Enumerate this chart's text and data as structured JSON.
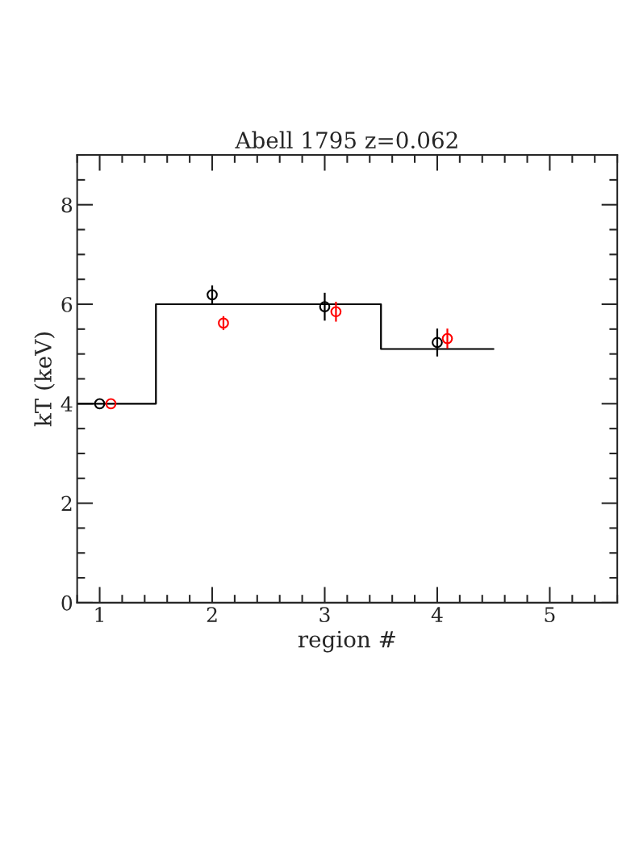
{
  "chart_data": {
    "type": "scatter",
    "title": "Abell 1795 z=0.062",
    "xlabel": "region #",
    "ylabel": "kT (keV)",
    "xlim": [
      0.8,
      5.6
    ],
    "xticks": [
      1,
      2,
      3,
      4,
      5
    ],
    "ylim": [
      0,
      9
    ],
    "yticks": [
      0,
      2,
      4,
      6,
      8
    ],
    "grid": false,
    "marker": "circle",
    "series": [
      {
        "type": "line",
        "color": "#000000",
        "x": [
          0.8,
          1.5,
          1.5,
          3.5,
          3.5,
          4.5
        ],
        "values": [
          4.0,
          4.0,
          6.0,
          6.0,
          5.1,
          5.1
        ],
        "line_style": "solid",
        "marker": "none"
      },
      {
        "color": "#000000",
        "x": [
          1,
          2,
          3,
          4
        ],
        "values": [
          4.0,
          6.19,
          5.95,
          5.23
        ],
        "errors": [
          null,
          0.19,
          0.28,
          0.28
        ]
      },
      {
        "color": "#ff0000",
        "x": [
          1.1,
          2.1,
          3.1,
          4.09
        ],
        "values": [
          4.0,
          5.62,
          5.85,
          5.31
        ],
        "errors": [
          null,
          0.14,
          0.2,
          0.2
        ]
      }
    ]
  }
}
